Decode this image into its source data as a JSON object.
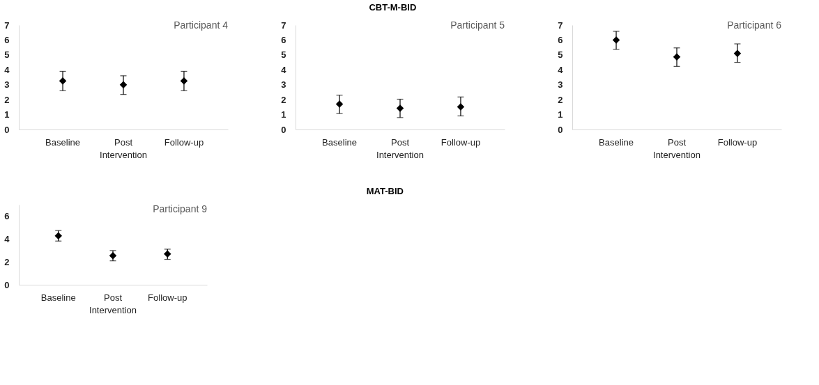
{
  "chart_data": [
    {
      "type": "scatter",
      "title": "Participant 4",
      "annotations": [
        "CBT-M-BID"
      ],
      "categories": [
        "Baseline",
        "Post Intervention",
        "Follow-up"
      ],
      "values": [
        3.25,
        3.0,
        3.25
      ],
      "errors": [
        [
          2.6,
          3.9
        ],
        [
          2.35,
          3.6
        ],
        [
          2.6,
          3.9
        ]
      ],
      "color": "#000000",
      "marker": "diamond",
      "ylim": [
        0,
        7
      ],
      "yticks": [
        0,
        1,
        2,
        3,
        4,
        5,
        6,
        7
      ],
      "grid": false
    },
    {
      "type": "scatter",
      "title": "Participant 5",
      "categories": [
        "Baseline",
        "Post Intervention",
        "Follow-up"
      ],
      "values": [
        1.7,
        1.42,
        1.52
      ],
      "errors": [
        [
          1.07,
          2.3
        ],
        [
          0.8,
          2.03
        ],
        [
          0.91,
          2.18
        ]
      ],
      "color": "#000000",
      "marker": "diamond",
      "ylim": [
        0,
        7
      ],
      "yticks": [
        0,
        1,
        2,
        3,
        4,
        5,
        6,
        7
      ],
      "grid": false
    },
    {
      "type": "scatter",
      "title": "Participant 6",
      "categories": [
        "Baseline",
        "Post Intervention",
        "Follow-up"
      ],
      "values": [
        6.0,
        4.87,
        5.1
      ],
      "errors": [
        [
          5.37,
          6.58
        ],
        [
          4.23,
          5.47
        ],
        [
          4.5,
          5.74
        ]
      ],
      "color": "#000000",
      "marker": "diamond",
      "ylim": [
        0,
        7
      ],
      "yticks": [
        0,
        1,
        2,
        3,
        4,
        5,
        6,
        7
      ],
      "grid": false
    },
    {
      "type": "scatter",
      "title": "Participant 9",
      "annotations": [
        "MAT-BID"
      ],
      "categories": [
        "Baseline",
        "Post Intervention",
        "Follow-up"
      ],
      "values": [
        4.27,
        2.54,
        2.7
      ],
      "errors": [
        [
          3.82,
          4.74
        ],
        [
          2.09,
          2.99
        ],
        [
          2.22,
          3.11
        ]
      ],
      "color": "#000000",
      "marker": "diamond",
      "ylim": [
        0,
        7
      ],
      "yticks": [
        0,
        2,
        4,
        6
      ],
      "grid": false
    }
  ]
}
